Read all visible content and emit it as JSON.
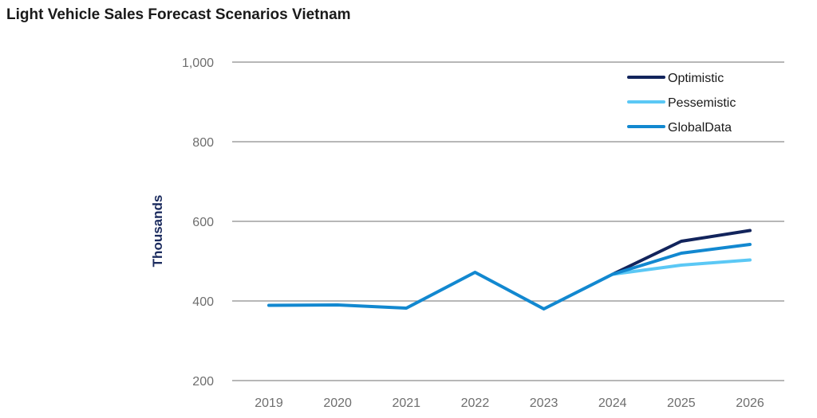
{
  "chart_data": {
    "type": "line",
    "title": "Light Vehicle Sales Forecast Scenarios Vietnam",
    "xlabel": "",
    "ylabel": "Thousands",
    "categories": [
      "2019",
      "2020",
      "2021",
      "2022",
      "2023",
      "2024",
      "2025",
      "2026"
    ],
    "ylim": [
      200,
      1000
    ],
    "yticks": [
      200,
      400,
      600,
      800,
      1000
    ],
    "ytick_labels": [
      "200",
      "400",
      "600",
      "800",
      "1,000"
    ],
    "grid": true,
    "legend_position": "top-right",
    "series": [
      {
        "name": "Optimistic",
        "color": "#12245c",
        "values": [
          null,
          null,
          null,
          null,
          null,
          467,
          550,
          577
        ]
      },
      {
        "name": "Pessemistic",
        "color": "#5bc8f5",
        "values": [
          null,
          null,
          null,
          null,
          null,
          467,
          490,
          503
        ]
      },
      {
        "name": "GlobalData",
        "color": "#1288d0",
        "values": [
          389,
          390,
          382,
          472,
          380,
          467,
          520,
          542
        ]
      }
    ]
  }
}
